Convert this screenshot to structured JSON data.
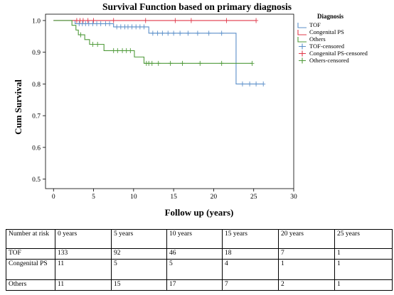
{
  "chart_data": {
    "type": "line",
    "title": "Survival Function based on primary diagnosis",
    "xlabel": "Follow up (years)",
    "ylabel": "Cum Survival",
    "xlim": [
      -1,
      30
    ],
    "ylim": [
      0.47,
      1.02
    ],
    "xticks": [
      "0",
      "5",
      "10",
      "15",
      "20",
      "25",
      "30"
    ],
    "yticks": [
      "0.5",
      "0.6",
      "0.7",
      "0.8",
      "0.9",
      "1.0"
    ],
    "xtick_values": [
      0,
      5,
      10,
      15,
      20,
      25,
      30
    ],
    "ytick_values": [
      0.5,
      0.6,
      0.7,
      0.8,
      0.9,
      1.0
    ],
    "grid": false,
    "legend_title": "Diagnosis",
    "legend_position": "top-right",
    "legend": [
      {
        "label": "TOF",
        "kind": "line",
        "color": "#5b8fc9"
      },
      {
        "label": "Congenital PS",
        "kind": "line",
        "color": "#e0384a"
      },
      {
        "label": "Others",
        "kind": "line",
        "color": "#4f9a3a"
      },
      {
        "label": "TOF-censored",
        "kind": "censor",
        "color": "#5b8fc9"
      },
      {
        "label": "Congenital PS-censored",
        "kind": "censor",
        "color": "#e0384a"
      },
      {
        "label": "Others-censored",
        "kind": "censor",
        "color": "#4f9a3a"
      }
    ],
    "series": [
      {
        "name": "TOF",
        "color": "#5b8fc9",
        "steps": [
          [
            0,
            1.0
          ],
          [
            2.7,
            0.99
          ],
          [
            7.5,
            0.98
          ],
          [
            11.9,
            0.96
          ],
          [
            22.8,
            0.8
          ],
          [
            26.2,
            0.8
          ]
        ],
        "censored": [
          [
            3.2,
            0.99
          ],
          [
            3.6,
            0.99
          ],
          [
            4.0,
            0.99
          ],
          [
            4.4,
            0.99
          ],
          [
            4.9,
            0.99
          ],
          [
            5.4,
            0.99
          ],
          [
            5.9,
            0.99
          ],
          [
            6.5,
            0.99
          ],
          [
            7.0,
            0.99
          ],
          [
            7.9,
            0.98
          ],
          [
            8.4,
            0.98
          ],
          [
            8.9,
            0.98
          ],
          [
            9.3,
            0.98
          ],
          [
            9.8,
            0.98
          ],
          [
            10.3,
            0.98
          ],
          [
            10.8,
            0.98
          ],
          [
            11.3,
            0.98
          ],
          [
            12.4,
            0.96
          ],
          [
            13.0,
            0.96
          ],
          [
            13.6,
            0.96
          ],
          [
            14.3,
            0.96
          ],
          [
            15.0,
            0.96
          ],
          [
            15.8,
            0.96
          ],
          [
            16.8,
            0.96
          ],
          [
            18.0,
            0.96
          ],
          [
            19.4,
            0.96
          ],
          [
            21.0,
            0.96
          ],
          [
            23.6,
            0.8
          ],
          [
            24.5,
            0.8
          ],
          [
            25.3,
            0.8
          ],
          [
            26.2,
            0.8
          ]
        ]
      },
      {
        "name": "Congenital PS",
        "color": "#e0384a",
        "steps": [
          [
            0,
            1.0
          ],
          [
            25.3,
            1.0
          ]
        ],
        "censored": [
          [
            2.9,
            1.0
          ],
          [
            3.3,
            1.0
          ],
          [
            3.7,
            1.0
          ],
          [
            4.3,
            1.0
          ],
          [
            5.0,
            1.0
          ],
          [
            7.5,
            1.0
          ],
          [
            11.5,
            1.0
          ],
          [
            15.2,
            1.0
          ],
          [
            17.2,
            1.0
          ],
          [
            21.6,
            1.0
          ],
          [
            25.3,
            1.0
          ]
        ]
      },
      {
        "name": "Others",
        "color": "#4f9a3a",
        "steps": [
          [
            0,
            1.0
          ],
          [
            2.3,
            0.985
          ],
          [
            2.8,
            0.97
          ],
          [
            3.1,
            0.955
          ],
          [
            3.9,
            0.94
          ],
          [
            4.5,
            0.925
          ],
          [
            6.3,
            0.905
          ],
          [
            10.1,
            0.885
          ],
          [
            11.3,
            0.865
          ],
          [
            24.8,
            0.865
          ]
        ],
        "censored": [
          [
            3.4,
            0.955
          ],
          [
            4.9,
            0.925
          ],
          [
            5.5,
            0.925
          ],
          [
            7.5,
            0.905
          ],
          [
            8.0,
            0.905
          ],
          [
            8.6,
            0.905
          ],
          [
            9.1,
            0.905
          ],
          [
            9.6,
            0.905
          ],
          [
            11.6,
            0.865
          ],
          [
            11.9,
            0.865
          ],
          [
            12.3,
            0.865
          ],
          [
            13.1,
            0.865
          ],
          [
            14.6,
            0.865
          ],
          [
            16.1,
            0.865
          ],
          [
            18.3,
            0.865
          ],
          [
            21.0,
            0.865
          ],
          [
            24.8,
            0.865
          ]
        ]
      }
    ]
  },
  "risk_table": {
    "header": [
      "Number at risk",
      "0 years",
      "5 years",
      "10 years",
      "15 years",
      "20 years",
      "25 years"
    ],
    "rows": [
      [
        "TOF",
        "133",
        "92",
        "46",
        "18",
        "7",
        "1"
      ],
      [
        "Congenital PS",
        "11",
        "5",
        "5",
        "4",
        "1",
        "1"
      ],
      [
        "Others",
        "11",
        "15",
        "17",
        "7",
        "2",
        "1"
      ]
    ]
  }
}
